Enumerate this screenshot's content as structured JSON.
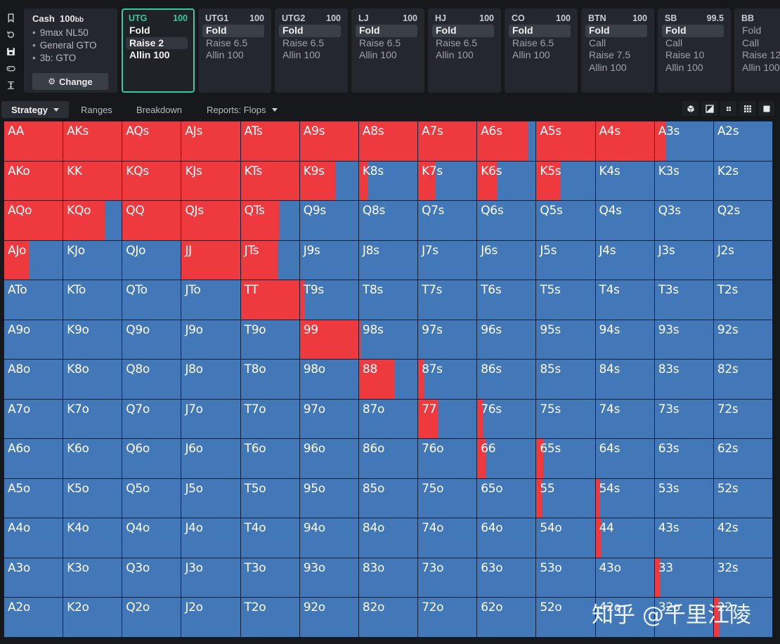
{
  "rail": {
    "icons": [
      "bookmark-icon",
      "history-icon",
      "save-icon",
      "gamepad-icon",
      "fit-height-icon"
    ]
  },
  "info": {
    "title": "Cash",
    "stack": "100",
    "stack_unit": "bb",
    "items": [
      "9max NL50",
      "General GTO",
      "3b: GTO"
    ],
    "change_label": "Change"
  },
  "positions": [
    {
      "id": "UTG",
      "stack": "100",
      "actions": [
        "Fold",
        "Raise 2",
        "Allin 100"
      ],
      "selected": 1,
      "active": true
    },
    {
      "id": "UTG1",
      "stack": "100",
      "actions": [
        "Fold",
        "Raise 6.5",
        "Allin 100"
      ],
      "selected": 0
    },
    {
      "id": "UTG2",
      "stack": "100",
      "actions": [
        "Fold",
        "Raise 6.5",
        "Allin 100"
      ],
      "selected": 0
    },
    {
      "id": "LJ",
      "stack": "100",
      "actions": [
        "Fold",
        "Raise 6.5",
        "Allin 100"
      ],
      "selected": 0
    },
    {
      "id": "HJ",
      "stack": "100",
      "actions": [
        "Fold",
        "Raise 6.5",
        "Allin 100"
      ],
      "selected": 0
    },
    {
      "id": "CO",
      "stack": "100",
      "actions": [
        "Fold",
        "Raise 6.5",
        "Allin 100"
      ],
      "selected": 0
    },
    {
      "id": "BTN",
      "stack": "100",
      "actions": [
        "Fold",
        "Call",
        "Raise 7.5",
        "Allin 100"
      ],
      "selected": 0
    },
    {
      "id": "SB",
      "stack": "99.5",
      "actions": [
        "Fold",
        "Call",
        "Raise 10",
        "Allin 100"
      ],
      "selected": 0
    },
    {
      "id": "BB",
      "stack": "",
      "actions": [
        "Fold",
        "Call",
        "Raise 12",
        "Allin 100"
      ],
      "selected": -1
    }
  ],
  "tabs": [
    {
      "label": "Strategy",
      "active": true,
      "dropdown": true
    },
    {
      "label": "Ranges"
    },
    {
      "label": "Breakdown"
    },
    {
      "label": "Reports: Flops",
      "dropdown": true
    }
  ],
  "view_tools": [
    "cube-icon",
    "contrast-icon",
    "compact-grid-icon",
    "grid-icon",
    "square-icon"
  ],
  "colors": {
    "raise": "#ee3a3f",
    "fold": "#4278b8",
    "accent": "#38c9a5"
  },
  "grid": {
    "ranks": [
      "A",
      "K",
      "Q",
      "J",
      "T",
      "9",
      "8",
      "7",
      "6",
      "5",
      "4",
      "3",
      "2"
    ],
    "raise_fraction": [
      [
        1,
        1,
        1,
        1,
        1,
        1,
        1,
        1,
        0.87,
        1,
        1,
        0.19,
        0
      ],
      [
        1,
        1,
        1,
        1,
        1,
        0.62,
        0.16,
        0.3,
        0.34,
        0.4,
        0,
        0,
        0
      ],
      [
        1,
        0.72,
        1,
        1,
        0.67,
        0,
        0,
        0,
        0,
        0,
        0,
        0,
        0
      ],
      [
        0.43,
        0,
        0,
        1,
        0.63,
        0,
        0,
        0,
        0,
        0,
        0,
        0,
        0
      ],
      [
        0,
        0,
        0,
        0,
        1,
        0.09,
        0,
        0,
        0,
        0,
        0,
        0,
        0
      ],
      [
        0,
        0,
        0,
        0,
        0,
        1,
        0.04,
        0,
        0,
        0,
        0,
        0,
        0
      ],
      [
        0,
        0,
        0,
        0,
        0,
        0,
        0.62,
        0.09,
        0,
        0,
        0,
        0,
        0
      ],
      [
        0,
        0,
        0,
        0,
        0,
        0,
        0,
        0.34,
        0.11,
        0,
        0,
        0,
        0
      ],
      [
        0,
        0,
        0,
        0,
        0,
        0,
        0,
        0,
        0.14,
        0.13,
        0,
        0,
        0
      ],
      [
        0,
        0,
        0,
        0,
        0,
        0,
        0,
        0,
        0,
        0.09,
        0.08,
        0,
        0
      ],
      [
        0,
        0,
        0,
        0,
        0,
        0,
        0,
        0,
        0,
        0,
        0.1,
        0,
        0
      ],
      [
        0,
        0,
        0,
        0,
        0,
        0,
        0,
        0,
        0,
        0,
        0,
        0.1,
        0
      ],
      [
        0,
        0,
        0,
        0,
        0,
        0,
        0,
        0,
        0,
        0,
        0,
        0,
        0.09
      ]
    ]
  },
  "watermark": "知乎 @千里江陵"
}
